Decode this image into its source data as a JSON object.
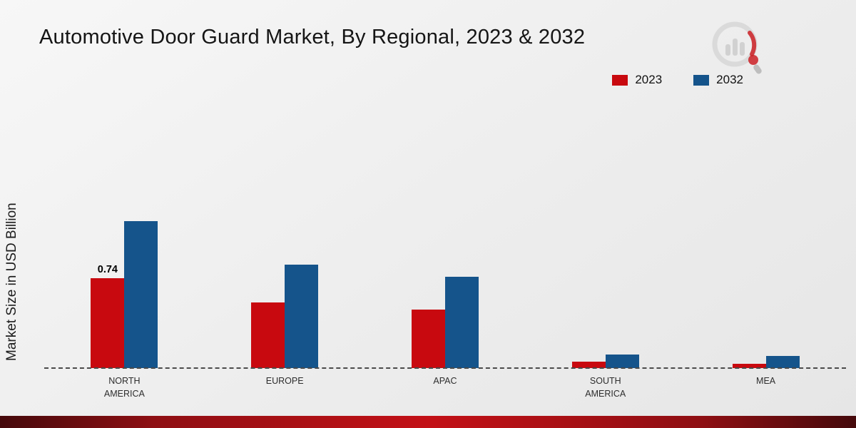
{
  "page": {
    "title": "Automotive Door Guard Market, By Regional, 2023 & 2032",
    "y_axis_label": "Market Size in USD Billion"
  },
  "legend": [
    {
      "label": "2023",
      "color": "#c8090f"
    },
    {
      "label": "2032",
      "color": "#15548b"
    }
  ],
  "colors": {
    "series_2023": "#c8090f",
    "series_2032": "#15548b",
    "bottom_strip": "#8e0f13",
    "background": "#ededed"
  },
  "chart_data": {
    "type": "bar",
    "title": "Automotive Door Guard Market, By Regional, 2023 & 2032",
    "xlabel": "",
    "ylabel": "Market Size in USD Billion",
    "categories": [
      "NORTH AMERICA",
      "EUROPE",
      "APAC",
      "SOUTH AMERICA",
      "MEA"
    ],
    "series": [
      {
        "name": "2023",
        "color": "#c8090f",
        "values": [
          0.74,
          0.54,
          0.48,
          0.05,
          0.035
        ]
      },
      {
        "name": "2032",
        "color": "#15548b",
        "values": [
          1.21,
          0.85,
          0.75,
          0.11,
          0.1
        ]
      }
    ],
    "data_labels": [
      {
        "series": 0,
        "category": 0,
        "text": "0.74"
      }
    ],
    "ylim": [
      0,
      1.35
    ],
    "grid": false,
    "baseline_style": "dashed",
    "legend_position": "top-right"
  }
}
